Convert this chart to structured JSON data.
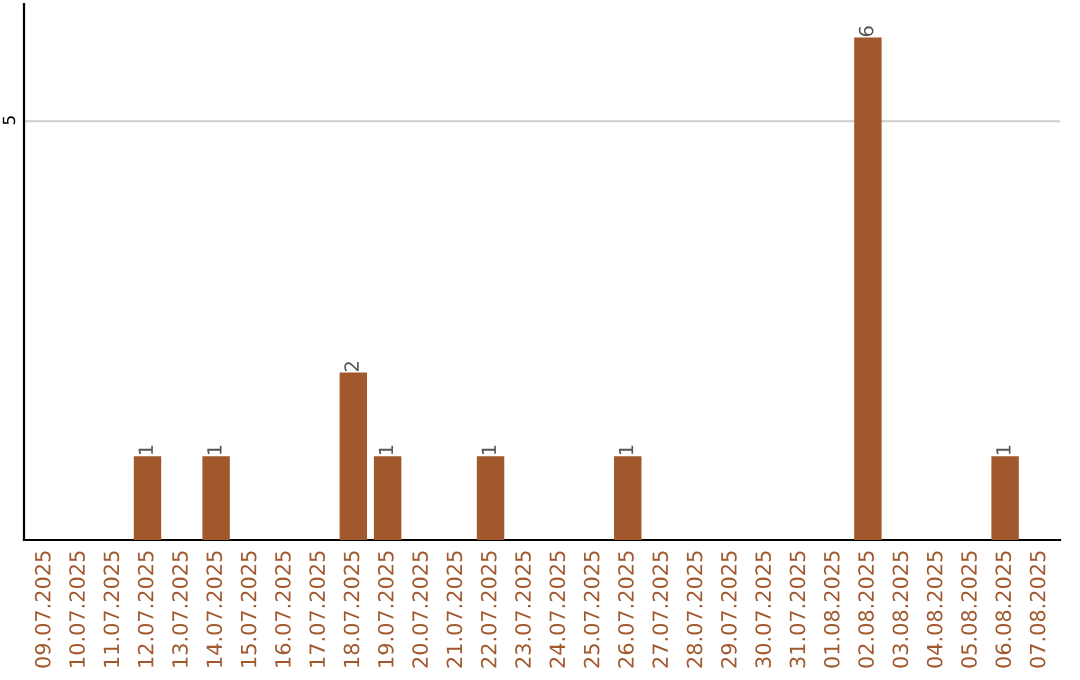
{
  "chart_data": {
    "type": "bar",
    "categories": [
      "09.07.2025",
      "10.07.2025",
      "11.07.2025",
      "12.07.2025",
      "13.07.2025",
      "14.07.2025",
      "15.07.2025",
      "16.07.2025",
      "17.07.2025",
      "18.07.2025",
      "19.07.2025",
      "20.07.2025",
      "21.07.2025",
      "22.07.2025",
      "23.07.2025",
      "24.07.2025",
      "25.07.2025",
      "26.07.2025",
      "27.07.2025",
      "28.07.2025",
      "29.07.2025",
      "30.07.2025",
      "31.07.2025",
      "01.08.2025",
      "02.08.2025",
      "03.08.2025",
      "04.08.2025",
      "05.08.2025",
      "06.08.2025",
      "07.08.2025"
    ],
    "values": [
      0,
      0,
      0,
      1,
      0,
      1,
      0,
      0,
      0,
      2,
      1,
      0,
      0,
      1,
      0,
      0,
      0,
      1,
      0,
      0,
      0,
      0,
      0,
      0,
      6,
      0,
      0,
      0,
      1,
      0
    ],
    "value_labels": [
      null,
      null,
      null,
      "1",
      null,
      "1",
      null,
      null,
      null,
      "2",
      "1",
      null,
      null,
      "1",
      null,
      null,
      null,
      "1",
      null,
      null,
      null,
      null,
      null,
      null,
      "6",
      null,
      null,
      null,
      "1",
      null
    ],
    "color": "#a0582c",
    "ylim": [
      0,
      6.4
    ],
    "yticks": [
      5
    ],
    "grid": "y"
  }
}
